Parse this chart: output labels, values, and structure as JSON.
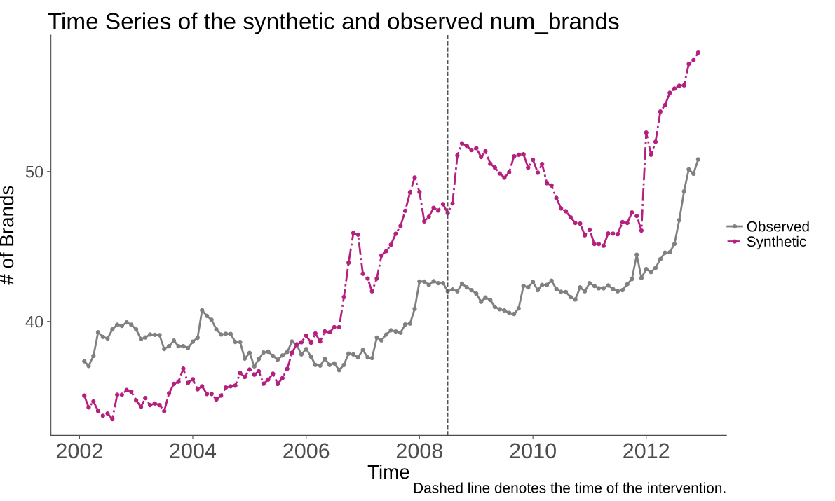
{
  "chart_data": {
    "type": "line",
    "title": "Time Series of the synthetic and observed num_brands",
    "xlabel": "Time",
    "ylabel": "# of Brands",
    "annotations": [
      "Dashed line denotes the time of the intervention."
    ],
    "x": [
      "2002-02",
      "2002-03",
      "2002-04",
      "2002-05",
      "2002-06",
      "2002-07",
      "2002-08",
      "2002-09",
      "2002-10",
      "2002-11",
      "2002-12",
      "2003-01",
      "2003-02",
      "2003-03",
      "2003-04",
      "2003-05",
      "2003-06",
      "2003-07",
      "2003-08",
      "2003-09",
      "2003-10",
      "2003-11",
      "2003-12",
      "2004-01",
      "2004-02",
      "2004-03",
      "2004-04",
      "2004-05",
      "2004-06",
      "2004-07",
      "2004-08",
      "2004-09",
      "2004-10",
      "2004-11",
      "2004-12",
      "2005-01",
      "2005-02",
      "2005-03",
      "2005-04",
      "2005-05",
      "2005-06",
      "2005-07",
      "2005-08",
      "2005-09",
      "2005-10",
      "2005-11",
      "2005-12",
      "2006-01",
      "2006-02",
      "2006-03",
      "2006-04",
      "2006-05",
      "2006-06",
      "2006-07",
      "2006-08",
      "2006-09",
      "2006-10",
      "2006-11",
      "2006-12",
      "2007-01",
      "2007-02",
      "2007-03",
      "2007-04",
      "2007-05",
      "2007-06",
      "2007-07",
      "2007-08",
      "2007-09",
      "2007-10",
      "2007-11",
      "2007-12",
      "2008-01",
      "2008-02",
      "2008-03",
      "2008-04",
      "2008-05",
      "2008-06",
      "2008-07",
      "2008-08",
      "2008-09",
      "2008-10",
      "2008-11",
      "2008-12",
      "2009-01",
      "2009-02",
      "2009-03",
      "2009-04",
      "2009-05",
      "2009-06",
      "2009-07",
      "2009-08",
      "2009-09",
      "2009-10",
      "2009-11",
      "2009-12",
      "2010-01",
      "2010-02",
      "2010-03",
      "2010-04",
      "2010-05",
      "2010-06",
      "2010-07",
      "2010-08",
      "2010-09",
      "2010-10",
      "2010-11",
      "2010-12",
      "2011-01",
      "2011-02",
      "2011-03",
      "2011-04",
      "2011-05",
      "2011-06",
      "2011-07",
      "2011-08",
      "2011-09",
      "2011-10",
      "2011-11",
      "2011-12",
      "2012-01",
      "2012-02",
      "2012-03",
      "2012-04",
      "2012-05",
      "2012-06",
      "2012-07",
      "2012-08",
      "2012-09",
      "2012-10",
      "2012-11",
      "2012-12"
    ],
    "series": [
      {
        "name": "Observed",
        "color": "#808080",
        "line_style": "solid",
        "values": [
          37.34,
          37.03,
          37.7,
          39.28,
          38.97,
          38.86,
          39.47,
          39.78,
          39.7,
          39.94,
          39.78,
          39.47,
          38.82,
          38.93,
          39.13,
          39.11,
          39.08,
          38.16,
          38.35,
          38.72,
          38.35,
          38.35,
          38.22,
          38.65,
          38.91,
          40.75,
          40.37,
          40.11,
          39.47,
          39.13,
          39.18,
          39.16,
          38.63,
          38.63,
          37.52,
          37.9,
          37.0,
          37.49,
          37.93,
          37.98,
          37.7,
          37.45,
          37.73,
          37.96,
          38.66,
          38.43,
          37.8,
          38.16,
          37.65,
          37.1,
          37.05,
          37.5,
          37.1,
          37.2,
          36.75,
          37.1,
          37.85,
          37.8,
          37.6,
          38.1,
          37.6,
          37.55,
          38.92,
          38.74,
          39.13,
          39.41,
          39.33,
          39.25,
          39.8,
          39.86,
          40.84,
          42.66,
          42.66,
          42.44,
          42.68,
          42.55,
          42.55,
          42.01,
          42.13,
          42.01,
          42.52,
          42.27,
          42.09,
          41.85,
          41.31,
          41.59,
          41.43,
          40.97,
          40.81,
          40.73,
          40.57,
          40.5,
          40.87,
          42.37,
          42.27,
          42.63,
          42.09,
          42.43,
          42.43,
          42.71,
          42.16,
          41.98,
          41.96,
          41.62,
          41.46,
          42.27,
          42.01,
          42.55,
          42.37,
          42.21,
          42.21,
          42.4,
          42.16,
          42.01,
          42.09,
          42.48,
          42.83,
          44.45,
          42.9,
          43.49,
          43.29,
          43.57,
          44.15,
          44.58,
          44.61,
          45.17,
          46.76,
          48.68,
          50.14,
          49.85,
          50.81
        ]
      },
      {
        "name": "Synthetic",
        "color": "#b5207f",
        "line_style": "dashdot",
        "values": [
          35.05,
          34.27,
          34.66,
          34.03,
          33.71,
          33.86,
          33.49,
          35.11,
          35.11,
          35.42,
          35.31,
          34.74,
          34.3,
          34.89,
          34.42,
          34.53,
          34.42,
          34.02,
          35.2,
          35.83,
          35.98,
          36.85,
          35.9,
          36.14,
          35.47,
          35.67,
          35.16,
          35.16,
          34.8,
          35.05,
          35.59,
          35.67,
          35.72,
          36.56,
          36.29,
          36.79,
          36.45,
          36.67,
          35.84,
          36.12,
          36.51,
          35.83,
          36.22,
          36.84,
          37.91,
          38.47,
          38.61,
          39.05,
          38.58,
          39.2,
          38.66,
          39.34,
          39.28,
          39.62,
          39.62,
          41.62,
          43.91,
          45.9,
          45.79,
          43.18,
          42.86,
          42.01,
          42.86,
          44.39,
          44.69,
          45.12,
          45.85,
          46.37,
          47.38,
          48.6,
          49.6,
          48.63,
          46.68,
          46.98,
          47.58,
          47.4,
          47.82,
          47.23,
          47.88,
          51.07,
          51.87,
          51.71,
          51.43,
          51.56,
          50.97,
          51.35,
          50.53,
          50.26,
          49.87,
          49.59,
          49.95,
          51.01,
          51.12,
          51.15,
          50.26,
          50.78,
          49.92,
          50.5,
          49.22,
          49.06,
          48.24,
          47.54,
          47.35,
          46.95,
          46.57,
          46.53,
          45.75,
          46.11,
          45.17,
          45.17,
          45.05,
          45.87,
          45.86,
          45.82,
          46.63,
          46.57,
          47.27,
          47.04,
          46.06,
          52.6,
          51.12,
          51.98,
          54.0,
          54.43,
          55.25,
          55.53,
          55.72,
          55.75,
          57.17,
          57.43,
          57.93
        ]
      }
    ],
    "marker": "circle",
    "xlim": [
      "2001-07",
      "2013-06"
    ],
    "xticks": [
      {
        "value": "2002",
        "label": "2002"
      },
      {
        "value": "2004",
        "label": "2004"
      },
      {
        "value": "2006",
        "label": "2006"
      },
      {
        "value": "2008",
        "label": "2008"
      },
      {
        "value": "2010",
        "label": "2010"
      },
      {
        "value": "2012",
        "label": "2012"
      }
    ],
    "ylim": [
      32.4,
      59.1
    ],
    "yticks": [
      40,
      50
    ],
    "ref_lines": [
      {
        "axis": "x",
        "value": "2008-07",
        "color": "#555555",
        "line_style": "dashed"
      }
    ],
    "grid": false,
    "legend": "right"
  }
}
